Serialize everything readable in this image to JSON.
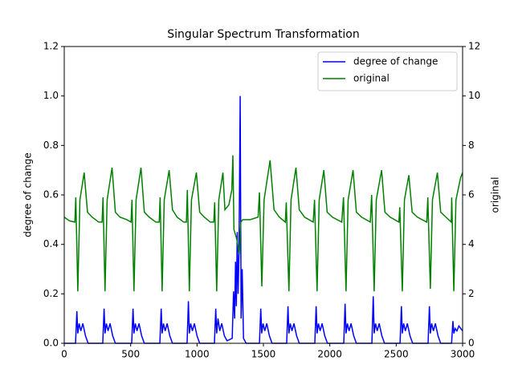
{
  "chart_data": {
    "type": "line",
    "title": "Singular Spectrum Transformation",
    "ylabel": "degree of change",
    "y2label": "original",
    "xlim": [
      0,
      3000
    ],
    "xticks": [
      0,
      500,
      1000,
      1500,
      2000,
      2500,
      3000
    ],
    "ylim": [
      0,
      1.2
    ],
    "yticks": [
      {
        "value": 0,
        "label": "0.0"
      },
      0.2,
      0.4,
      0.6,
      0.8,
      {
        "value": 1,
        "label": "1.0"
      },
      1.2
    ],
    "y2lim": [
      0,
      12
    ],
    "y2ticks": [
      0,
      2,
      4,
      6,
      8,
      10,
      12
    ],
    "legend": "upper right",
    "series": [
      {
        "name": "degree of change",
        "color": "#0000ff",
        "axis": "y",
        "x": [
          0,
          85,
          95,
          102,
          112,
          125,
          140,
          160,
          180,
          290,
          300,
          307,
          317,
          330,
          345,
          365,
          385,
          508,
          518,
          525,
          535,
          548,
          563,
          583,
          603,
          720,
          730,
          737,
          747,
          760,
          775,
          795,
          815,
          925,
          935,
          942,
          952,
          965,
          980,
          1000,
          1020,
          1131,
          1141,
          1148,
          1158,
          1171,
          1186,
          1206,
          1226,
          1265,
          1275,
          1283,
          1290,
          1296,
          1303,
          1309,
          1316,
          1325,
          1332,
          1340,
          1350,
          1370,
          1470,
          1480,
          1487,
          1497,
          1510,
          1525,
          1545,
          1565,
          1675,
          1685,
          1692,
          1702,
          1715,
          1730,
          1750,
          1770,
          1887,
          1897,
          1904,
          1914,
          1927,
          1942,
          1962,
          1982,
          2105,
          2115,
          2122,
          2132,
          2145,
          2160,
          2180,
          2200,
          2317,
          2327,
          2334,
          2344,
          2357,
          2372,
          2392,
          2412,
          2529,
          2539,
          2546,
          2556,
          2569,
          2584,
          2604,
          2624,
          2740,
          2750,
          2757,
          2767,
          2780,
          2795,
          2815,
          2835,
          2917,
          2927,
          2934,
          2944,
          2957,
          2972,
          3000
        ],
        "values": [
          0,
          0,
          0.13,
          0.04,
          0.08,
          0.05,
          0.08,
          0.03,
          0,
          0,
          0.14,
          0.04,
          0.08,
          0.05,
          0.08,
          0.03,
          0,
          0,
          0.14,
          0.04,
          0.08,
          0.05,
          0.08,
          0.03,
          0,
          0,
          0.14,
          0.04,
          0.08,
          0.05,
          0.08,
          0.03,
          0,
          0,
          0.17,
          0.04,
          0.08,
          0.05,
          0.08,
          0.03,
          0,
          0,
          0.14,
          0.04,
          0.1,
          0.05,
          0.08,
          0.03,
          0.01,
          0.02,
          0.21,
          0.1,
          0.33,
          0.15,
          0.45,
          0.2,
          0.36,
          1.0,
          0.1,
          0.3,
          0.02,
          0,
          0,
          0.14,
          0.04,
          0.08,
          0.05,
          0.08,
          0.03,
          0,
          0,
          0.15,
          0.04,
          0.08,
          0.05,
          0.08,
          0.03,
          0,
          0,
          0.15,
          0.04,
          0.08,
          0.05,
          0.08,
          0.03,
          0,
          0,
          0.16,
          0.04,
          0.08,
          0.05,
          0.08,
          0.03,
          0,
          0,
          0.19,
          0.04,
          0.08,
          0.05,
          0.08,
          0.03,
          0,
          0,
          0.15,
          0.04,
          0.08,
          0.05,
          0.08,
          0.03,
          0,
          0,
          0.15,
          0.04,
          0.08,
          0.05,
          0.08,
          0.03,
          0,
          0,
          0.09,
          0.04,
          0.06,
          0.05,
          0.07,
          0.05
        ]
      },
      {
        "name": "original",
        "color": "#008000",
        "axis": "y2",
        "x": [
          0,
          40,
          80,
          87,
          102,
          118,
          150,
          175,
          210,
          260,
          285,
          292,
          307,
          323,
          360,
          385,
          420,
          470,
          503,
          510,
          525,
          541,
          578,
          603,
          640,
          690,
          715,
          722,
          737,
          753,
          790,
          815,
          850,
          900,
          920,
          927,
          942,
          958,
          995,
          1020,
          1055,
          1100,
          1126,
          1133,
          1148,
          1164,
          1195,
          1210,
          1240,
          1262,
          1270,
          1278,
          1300,
          1318,
          1330,
          1345,
          1400,
          1460,
          1470,
          1488,
          1505,
          1550,
          1580,
          1620,
          1665,
          1672,
          1692,
          1708,
          1745,
          1770,
          1810,
          1875,
          1885,
          1904,
          1920,
          1955,
          1980,
          2020,
          2090,
          2103,
          2122,
          2138,
          2175,
          2200,
          2240,
          2305,
          2315,
          2334,
          2350,
          2390,
          2415,
          2455,
          2520,
          2527,
          2546,
          2562,
          2595,
          2620,
          2660,
          2730,
          2738,
          2757,
          2773,
          2810,
          2835,
          2875,
          2915,
          2918,
          2934,
          2950,
          2985,
          3000
        ],
        "values": [
          5.1,
          4.95,
          4.9,
          5.9,
          2.1,
          5.8,
          6.9,
          5.3,
          5.1,
          4.9,
          4.9,
          5.9,
          2.1,
          5.8,
          7.1,
          5.3,
          5.1,
          5.0,
          4.9,
          5.8,
          2.1,
          5.8,
          7.1,
          5.3,
          5.1,
          4.9,
          4.9,
          5.9,
          2.1,
          5.8,
          7.0,
          5.4,
          5.1,
          4.9,
          4.9,
          6.2,
          2.1,
          5.8,
          6.9,
          5.3,
          5.1,
          4.9,
          4.9,
          5.7,
          2.1,
          5.8,
          6.9,
          5.4,
          5.6,
          6.2,
          7.6,
          4.6,
          4.2,
          3.6,
          4.9,
          5.0,
          5.0,
          5.1,
          6.1,
          2.3,
          5.8,
          7.4,
          5.4,
          5.1,
          4.9,
          5.7,
          2.1,
          5.8,
          7.1,
          5.4,
          5.1,
          4.9,
          5.8,
          2.1,
          5.8,
          7.0,
          5.3,
          5.1,
          4.9,
          5.9,
          2.1,
          5.8,
          7.0,
          5.3,
          5.1,
          4.9,
          6.0,
          2.1,
          5.8,
          7.0,
          5.3,
          5.1,
          4.9,
          5.5,
          2.1,
          5.8,
          6.8,
          5.3,
          5.1,
          4.9,
          5.9,
          2.2,
          5.8,
          6.9,
          5.3,
          5.1,
          4.9,
          5.9,
          2.1,
          5.8,
          6.7,
          6.9
        ]
      }
    ]
  }
}
